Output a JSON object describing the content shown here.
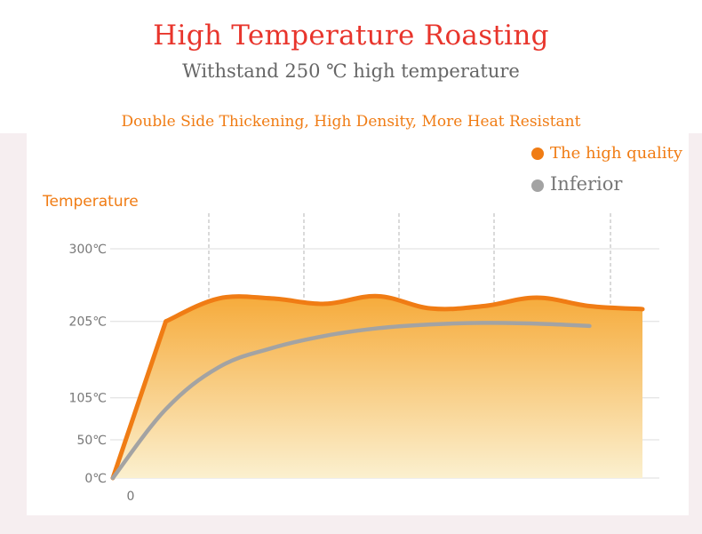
{
  "header": {
    "title": "High Temperature Roasting",
    "subtitle": "Withstand 250 ℃ high temperature",
    "tagline": "Double Side Thickening, High Density, More Heat Resistant"
  },
  "colors": {
    "title": "#e8352c",
    "accent": "#f07c14",
    "inferior": "#a3a3a3",
    "fill_top": "#f6ab3b",
    "fill_bottom": "#fbf0cf"
  },
  "chart_data": {
    "type": "area",
    "title": "High Temperature Roasting",
    "ylabel": "Temperature",
    "xlabel": "",
    "x_tick_labels": [
      "0"
    ],
    "y_tick_labels": [
      "300℃",
      "205℃",
      "105℃",
      "50℃",
      "0℃"
    ],
    "y_tick_values": [
      300,
      205,
      105,
      50,
      0
    ],
    "ylim": [
      0,
      300
    ],
    "xlim": [
      0,
      10
    ],
    "grid": {
      "vertical_dashed": true,
      "horizontal": true
    },
    "legend_position": "top-right",
    "series": [
      {
        "name": "The high quality",
        "color": "#f07c14",
        "filled": true,
        "x": [
          0,
          1,
          2,
          3,
          4,
          5,
          6,
          7,
          8,
          9,
          10
        ],
        "y": [
          0,
          205,
          235,
          235,
          228,
          238,
          222,
          225,
          236,
          225,
          221
        ]
      },
      {
        "name": "Inferior",
        "color": "#a3a3a3",
        "filled": false,
        "x": [
          0,
          1,
          2,
          3,
          4,
          5,
          6,
          7,
          8,
          9
        ],
        "y": [
          0,
          90,
          145,
          170,
          186,
          196,
          201,
          203,
          202,
          199
        ]
      }
    ]
  }
}
